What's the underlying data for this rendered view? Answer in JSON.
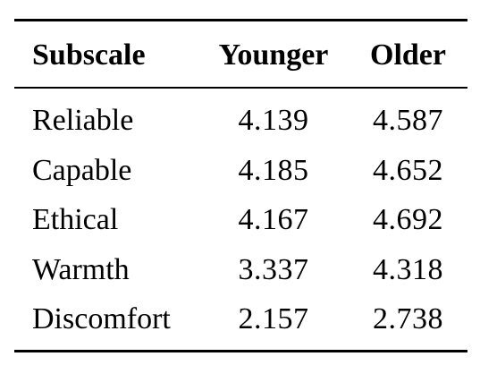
{
  "table": {
    "headers": [
      "Subscale",
      "Younger",
      "Older"
    ],
    "rows": [
      {
        "subscale": "Reliable",
        "younger": "4.139",
        "older": "4.587"
      },
      {
        "subscale": "Capable",
        "younger": "4.185",
        "older": "4.652"
      },
      {
        "subscale": "Ethical",
        "younger": "4.167",
        "older": "4.692"
      },
      {
        "subscale": "Warmth",
        "younger": "3.337",
        "older": "4.318"
      },
      {
        "subscale": "Discomfort",
        "younger": "2.157",
        "older": "2.738"
      }
    ]
  }
}
